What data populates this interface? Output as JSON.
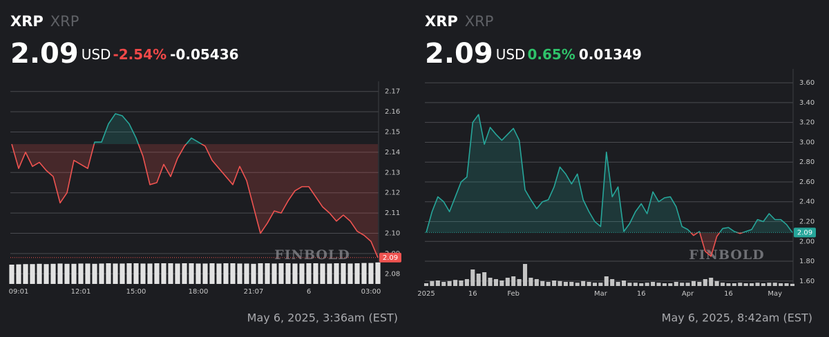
{
  "chart_data": [
    {
      "type": "line",
      "symbol": "XRP",
      "name": "XRP",
      "price": "2.09",
      "currency": "USD",
      "change_pct": "-2.54%",
      "change": "-0.05436",
      "change_color": "#f04848",
      "timestamp": "May 6, 2025, 3:36am (EST)",
      "watermark": "FINBOLD",
      "last_label": "2.09",
      "up_color": "#26a69a",
      "down_color": "#ef5350",
      "volume_color": "#e2e2e2",
      "grid": true,
      "categories": [
        null,
        "09:01",
        null,
        null,
        null,
        null,
        null,
        null,
        null,
        null,
        "12:01",
        null,
        null,
        null,
        null,
        null,
        null,
        null,
        "15:00",
        null,
        null,
        null,
        null,
        null,
        null,
        null,
        null,
        "18:00",
        null,
        null,
        null,
        null,
        null,
        null,
        null,
        "21:07",
        null,
        null,
        null,
        null,
        null,
        null,
        null,
        "6",
        null,
        null,
        null,
        null,
        null,
        null,
        null,
        null,
        "03:00",
        null
      ],
      "values": [
        2.144,
        2.132,
        2.14,
        2.133,
        2.135,
        2.131,
        2.128,
        2.115,
        2.12,
        2.136,
        2.134,
        2.132,
        2.145,
        2.145,
        2.154,
        2.159,
        2.158,
        2.154,
        2.147,
        2.138,
        2.124,
        2.125,
        2.134,
        2.128,
        2.137,
        2.143,
        2.147,
        2.145,
        2.143,
        2.136,
        2.132,
        2.128,
        2.124,
        2.133,
        2.126,
        2.113,
        2.1,
        2.105,
        2.111,
        2.11,
        2.116,
        2.121,
        2.123,
        2.123,
        2.118,
        2.113,
        2.11,
        2.106,
        2.109,
        2.106,
        2.101,
        2.099,
        2.096,
        2.088
      ],
      "volume": [
        70,
        71,
        72,
        72,
        73,
        72,
        73,
        74,
        73,
        73,
        74,
        74,
        73,
        74,
        75,
        74,
        74,
        75,
        75,
        74,
        74,
        75,
        75,
        75,
        74,
        75,
        75,
        74,
        74,
        75,
        74,
        75,
        75,
        74,
        74,
        73,
        75,
        75,
        74,
        75,
        75,
        74,
        74,
        75,
        75,
        74,
        74,
        75,
        75,
        74,
        75,
        76,
        76,
        78
      ],
      "ylim": [
        2.075,
        2.175
      ],
      "yticks": [
        2.08,
        2.09,
        {
          "value": 2.1,
          "label": "2.10"
        },
        2.11,
        2.12,
        2.13,
        2.14,
        2.15,
        2.16,
        2.17
      ]
    },
    {
      "type": "line",
      "symbol": "XRP",
      "name": "XRP",
      "price": "2.09",
      "currency": "USD",
      "change_pct": "0.65%",
      "change": "0.01349",
      "change_color": "#2fc26a",
      "timestamp": "May 6, 2025, 8:42am (EST)",
      "watermark": "FINBOLD",
      "last_label": "2.09",
      "up_color": "#26a69a",
      "down_color": "#ef5350",
      "volume_color": "#c4c4c4",
      "grid": true,
      "categories": [
        "2025",
        null,
        null,
        null,
        null,
        null,
        null,
        null,
        "16",
        null,
        null,
        null,
        null,
        null,
        null,
        "Feb",
        null,
        null,
        null,
        null,
        null,
        null,
        null,
        null,
        null,
        null,
        null,
        null,
        null,
        null,
        "Mar",
        null,
        null,
        null,
        null,
        null,
        null,
        "16",
        null,
        null,
        null,
        null,
        null,
        null,
        null,
        "Apr",
        null,
        null,
        null,
        null,
        null,
        null,
        "16",
        null,
        null,
        null,
        null,
        null,
        null,
        null,
        "May",
        null,
        null,
        null
      ],
      "values": [
        2.09,
        2.3,
        2.45,
        2.4,
        2.3,
        2.45,
        2.6,
        2.65,
        3.2,
        3.28,
        2.98,
        3.15,
        3.08,
        3.02,
        3.08,
        3.14,
        3.02,
        2.52,
        2.42,
        2.33,
        2.4,
        2.42,
        2.55,
        2.75,
        2.68,
        2.58,
        2.68,
        2.42,
        2.3,
        2.2,
        2.15,
        2.9,
        2.45,
        2.55,
        2.1,
        2.18,
        2.3,
        2.38,
        2.28,
        2.5,
        2.4,
        2.44,
        2.45,
        2.35,
        2.15,
        2.12,
        2.06,
        2.1,
        1.9,
        1.85,
        2.05,
        2.13,
        2.14,
        2.1,
        2.08,
        2.1,
        2.12,
        2.22,
        2.2,
        2.28,
        2.22,
        2.22,
        2.17,
        2.09
      ],
      "volume": [
        10,
        18,
        20,
        15,
        18,
        22,
        20,
        25,
        60,
        45,
        50,
        30,
        25,
        20,
        30,
        35,
        25,
        80,
        30,
        25,
        18,
        15,
        20,
        18,
        15,
        15,
        12,
        18,
        15,
        12,
        12,
        35,
        25,
        15,
        20,
        12,
        12,
        10,
        12,
        15,
        12,
        10,
        10,
        15,
        12,
        12,
        18,
        15,
        25,
        30,
        18,
        12,
        10,
        10,
        12,
        10,
        10,
        12,
        10,
        12,
        12,
        10,
        10,
        8
      ],
      "ylim": [
        1.55,
        3.74
      ],
      "yticks": [
        {
          "value": 1.6,
          "label": "1.60"
        },
        {
          "value": 1.8,
          "label": "1.80"
        },
        {
          "value": 2.0,
          "label": "2.00"
        },
        {
          "value": 2.2,
          "label": "2.20"
        },
        {
          "value": 2.4,
          "label": "2.40"
        },
        {
          "value": 2.6,
          "label": "2.60"
        },
        {
          "value": 2.8,
          "label": "2.80"
        },
        {
          "value": 3.0,
          "label": "3.00"
        },
        {
          "value": 3.2,
          "label": "3.20"
        },
        {
          "value": 3.4,
          "label": "3.40"
        },
        {
          "value": 3.6,
          "label": "3.60"
        }
      ]
    }
  ]
}
